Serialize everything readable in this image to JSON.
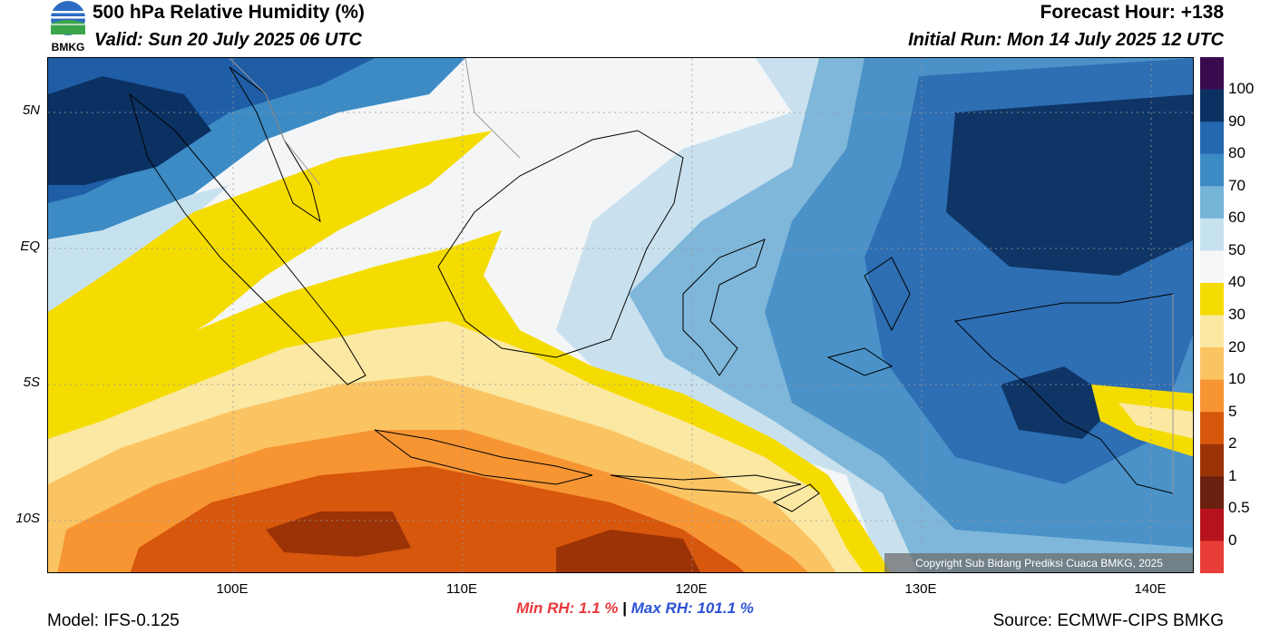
{
  "header": {
    "logo_text": "BMKG",
    "title": "500 hPa Relative Humidity (%)",
    "valid": "Valid: Sun 20 July 2025 06 UTC",
    "forecast_hour": "Forecast Hour: +138",
    "initial_run": "Initial Run: Mon 14 July 2025 12 UTC"
  },
  "map": {
    "lat_labels": [
      "5N",
      "EQ",
      "5S",
      "10S"
    ],
    "lon_labels": [
      "100E",
      "110E",
      "120E",
      "130E",
      "140E"
    ],
    "copyright": "Copyright Sub Bidang Prediksi Cuaca BMKG, 2025"
  },
  "colorbar": {
    "labels": [
      "100",
      "90",
      "80",
      "70",
      "60",
      "50",
      "40",
      "30",
      "20",
      "10",
      "5",
      "2",
      "1",
      "0.5",
      "0"
    ],
    "colors": [
      "#3a0a4f",
      "#0b3163",
      "#2468b0",
      "#3c8bc4",
      "#76b4d8",
      "#c7e2ef",
      "#f6f6f6",
      "#f5dc00",
      "#fbe8a2",
      "#fbc463",
      "#f79533",
      "#d7570c",
      "#9c3306",
      "#6a200f",
      "#b5121b",
      "#e93d38"
    ]
  },
  "stats": {
    "min": "Min RH:   1.1 %",
    "separator": "|",
    "max": "Max RH: 101.1 %"
  },
  "footer": {
    "model": "Model: IFS-0.125",
    "source": "Source: ECMWF-CIPS BMKG"
  }
}
